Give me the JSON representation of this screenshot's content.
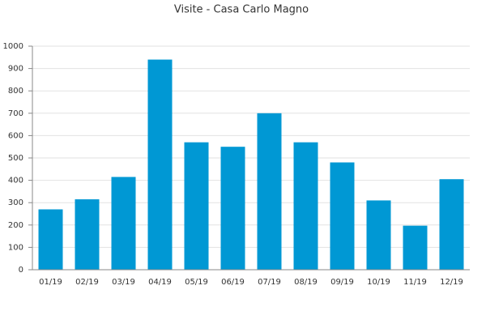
{
  "chart_data": {
    "type": "bar",
    "title": "Visite - Casa Carlo Magno",
    "categories": [
      "01/19",
      "02/19",
      "03/19",
      "04/19",
      "05/19",
      "06/19",
      "07/19",
      "08/19",
      "09/19",
      "10/19",
      "11/19",
      "12/19"
    ],
    "values": [
      270,
      315,
      415,
      940,
      570,
      550,
      700,
      570,
      480,
      310,
      197,
      405
    ],
    "color": "#0098d4",
    "ylim": [
      0,
      1000
    ],
    "yticks": [
      0,
      100,
      200,
      300,
      400,
      500,
      600,
      700,
      800,
      900,
      1000
    ],
    "grid": true
  }
}
